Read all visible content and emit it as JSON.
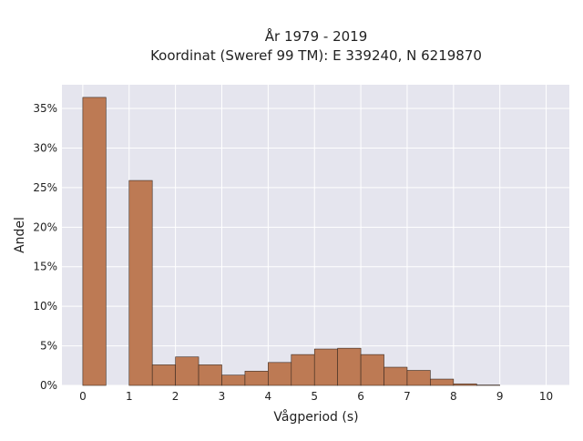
{
  "chart_data": {
    "type": "bar",
    "title_line1": "År 1979 - 2019",
    "title_line2": "Koordinat (Sweref 99 TM): E 339240, N 6219870",
    "xlabel": "Vågperiod (s)",
    "ylabel": "Andel",
    "xlim": [
      -0.45,
      10.5
    ],
    "ylim": [
      0,
      38
    ],
    "x_ticks": [
      0,
      1,
      2,
      3,
      4,
      5,
      6,
      7,
      8,
      9,
      10
    ],
    "y_ticks": [
      0,
      5,
      10,
      15,
      20,
      25,
      30,
      35
    ],
    "y_tick_suffix": "%",
    "grid": true,
    "bin_width": 0.5,
    "bars": [
      {
        "start": 0.0,
        "end": 0.5,
        "value": 36.4
      },
      {
        "start": 1.0,
        "end": 1.5,
        "value": 25.9
      },
      {
        "start": 1.5,
        "end": 2.0,
        "value": 2.6
      },
      {
        "start": 2.0,
        "end": 2.5,
        "value": 3.6
      },
      {
        "start": 2.5,
        "end": 3.0,
        "value": 2.6
      },
      {
        "start": 3.0,
        "end": 3.5,
        "value": 1.3
      },
      {
        "start": 3.5,
        "end": 4.0,
        "value": 1.8
      },
      {
        "start": 4.0,
        "end": 4.5,
        "value": 2.9
      },
      {
        "start": 4.5,
        "end": 5.0,
        "value": 3.9
      },
      {
        "start": 5.0,
        "end": 5.5,
        "value": 4.6
      },
      {
        "start": 5.5,
        "end": 6.0,
        "value": 4.7
      },
      {
        "start": 6.0,
        "end": 6.5,
        "value": 3.9
      },
      {
        "start": 6.5,
        "end": 7.0,
        "value": 2.3
      },
      {
        "start": 7.0,
        "end": 7.5,
        "value": 1.9
      },
      {
        "start": 7.5,
        "end": 8.0,
        "value": 0.8
      },
      {
        "start": 8.0,
        "end": 8.5,
        "value": 0.2
      },
      {
        "start": 8.5,
        "end": 9.0,
        "value": 0.05
      }
    ],
    "colors": {
      "bar_fill": "#bd7a54",
      "bar_stroke": "#3a2a20",
      "plot_bg": "#e5e5ee",
      "grid": "#ffffff"
    }
  }
}
